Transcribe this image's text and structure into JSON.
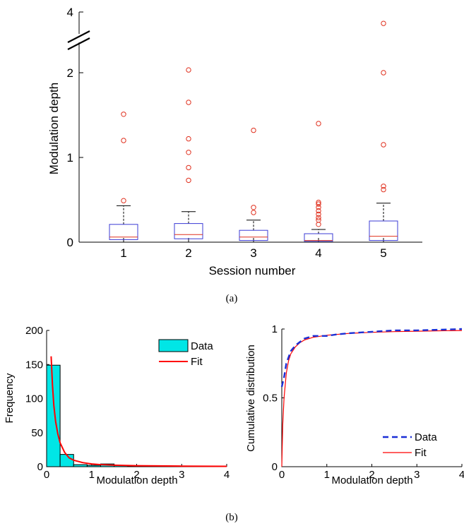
{
  "chart_data": [
    {
      "type": "box",
      "caption": "(a)",
      "xlabel": "Session number",
      "ylabel": "Modulation depth",
      "x_tick_labels": [
        "1",
        "2",
        "3",
        "4",
        "5"
      ],
      "y_tick_labels": [
        "0",
        "1",
        "2",
        "4"
      ],
      "ylim": [
        0,
        4
      ],
      "axis_break": "between 2 and 4",
      "box_color": "#3b3bd6",
      "median_color": "#e0301e",
      "outlier_color": "#e0301e",
      "series": [
        {
          "session": "1",
          "whisker_low": 0.0,
          "q1": 0.03,
          "median": 0.06,
          "q3": 0.21,
          "whisker_high": 0.43,
          "outliers": [
            0.49,
            1.2,
            1.51
          ]
        },
        {
          "session": "2",
          "whisker_low": 0.0,
          "q1": 0.04,
          "median": 0.09,
          "q3": 0.22,
          "whisker_high": 0.36,
          "outliers": [
            0.73,
            0.88,
            1.06,
            1.22,
            1.65,
            2.22
          ]
        },
        {
          "session": "3",
          "whisker_low": 0.0,
          "q1": 0.02,
          "median": 0.06,
          "q3": 0.14,
          "whisker_high": 0.26,
          "outliers": [
            0.35,
            0.41,
            1.32
          ]
        },
        {
          "session": "4",
          "whisker_low": 0.0,
          "q1": 0.01,
          "median": 0.02,
          "q3": 0.1,
          "whisker_high": 0.15,
          "outliers": [
            0.21,
            0.26,
            0.29,
            0.33,
            0.37,
            0.41,
            0.45,
            0.47,
            1.4
          ]
        },
        {
          "session": "5",
          "whisker_low": 0.0,
          "q1": 0.02,
          "median": 0.07,
          "q3": 0.25,
          "whisker_high": 0.46,
          "outliers": [
            0.62,
            0.66,
            1.15,
            2.0,
            3.65
          ]
        }
      ]
    },
    {
      "type": "bar",
      "xlabel": "Modulation depth",
      "ylabel": "Frequency",
      "xlim": [
        0,
        4
      ],
      "ylim": [
        0,
        200
      ],
      "x_tick_labels": [
        "0",
        "1",
        "2",
        "3",
        "4"
      ],
      "y_tick_labels": [
        "0",
        "50",
        "100",
        "150",
        "200"
      ],
      "legend": [
        "Data",
        "Fit"
      ],
      "legend_position": "top-right",
      "bar_color": "#00e6e6",
      "fit_color": "#ff0000",
      "bin_edges": [
        0.0,
        0.3,
        0.6,
        0.9,
        1.2,
        1.5,
        1.8,
        2.1
      ],
      "values": [
        149,
        18,
        3,
        2,
        4,
        2,
        1
      ],
      "fit": {
        "x": [
          0.1,
          0.13,
          0.16,
          0.2,
          0.25,
          0.3,
          0.4,
          0.5,
          0.6,
          0.8,
          1.0,
          1.2,
          1.5,
          2.0,
          2.5,
          3.0,
          3.5,
          4.0
        ],
        "y": [
          162,
          120,
          90,
          66,
          48,
          35,
          21,
          13,
          9.5,
          6,
          4,
          3,
          2.2,
          1.5,
          1.1,
          0.8,
          0.6,
          0.5
        ]
      }
    },
    {
      "type": "line",
      "caption": "(b)",
      "xlabel": "Modulation depth",
      "ylabel": "Cumulative distribution",
      "xlim": [
        0,
        4
      ],
      "ylim": [
        0,
        1
      ],
      "x_tick_labels": [
        "0",
        "1",
        "2",
        "3",
        "4"
      ],
      "y_tick_labels": [
        "0",
        "0.5",
        "1"
      ],
      "legend": [
        "Data",
        "Fit"
      ],
      "legend_position": "bottom-right",
      "series": [
        {
          "name": "Data",
          "color": "#1a2fd6",
          "style": "dashed",
          "x": [
            0,
            0.05,
            0.1,
            0.2,
            0.3,
            0.5,
            0.7,
            0.9,
            1.0,
            1.2,
            1.5,
            2.0,
            2.5,
            3.0,
            3.5,
            4.0
          ],
          "y": [
            0.58,
            0.65,
            0.75,
            0.84,
            0.88,
            0.93,
            0.95,
            0.95,
            0.95,
            0.96,
            0.97,
            0.98,
            0.99,
            0.99,
            0.995,
            1.0
          ]
        },
        {
          "name": "Fit",
          "color": "#ff0000",
          "style": "solid",
          "x": [
            0,
            0.02,
            0.05,
            0.1,
            0.15,
            0.2,
            0.3,
            0.4,
            0.5,
            0.7,
            1.0,
            1.5,
            2.0,
            2.5,
            3.0,
            3.5,
            4.0
          ],
          "y": [
            0,
            0.3,
            0.5,
            0.68,
            0.77,
            0.82,
            0.87,
            0.9,
            0.92,
            0.94,
            0.955,
            0.968,
            0.976,
            0.981,
            0.984,
            0.987,
            0.989
          ]
        }
      ]
    }
  ]
}
